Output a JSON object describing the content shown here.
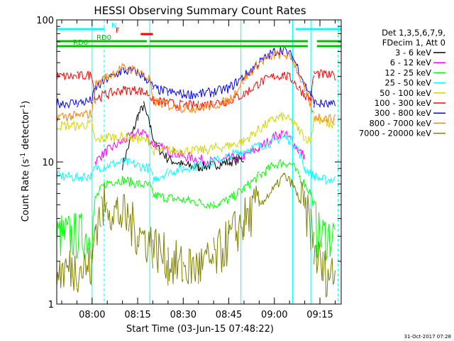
{
  "colors": {
    "series": [
      "#000000",
      "#ff00ff",
      "#00ff00",
      "#00ffff",
      "#d4d400",
      "#ff0000",
      "#0000ff",
      "#ff8000",
      "#808000"
    ],
    "attenuator": "#00c000",
    "night": "#00ffff",
    "flare": "#ff0000",
    "saa": "#00ffff"
  },
  "chart_data": {
    "type": "line",
    "title": "HESSI Observing Summary Count Rates",
    "xlabel": "Start Time (03-Jun-15 07:48:22)",
    "ylabel_main": "Count Rate (s",
    "ylabel_sup1": "-1",
    "ylabel_mid": " detector",
    "ylabel_sup2": "-1",
    "ylabel_end": ")",
    "y_scale": "log",
    "ylim": [
      1,
      100
    ],
    "xlim": [
      "07:48:22",
      "09:22:00"
    ],
    "x_ticks": [
      "08:00",
      "08:15",
      "08:30",
      "08:45",
      "09:00",
      "09:15"
    ],
    "y_tick_labels": [
      "1",
      "10",
      "100"
    ],
    "legend_header": [
      "Det 1,3,5,6,7,9,",
      "FDecim 1, Att 0"
    ],
    "grid": false,
    "legend_position": "right",
    "series": [
      {
        "name": "3 - 6 keV",
        "color_index": 0,
        "points": [
          [
            "07:48:22",
            null
          ],
          [
            "08:10",
            9.5
          ],
          [
            "08:13",
            15
          ],
          [
            "08:15",
            21
          ],
          [
            "08:17",
            25
          ],
          [
            "08:19",
            18
          ],
          [
            "08:21",
            13
          ],
          [
            "08:25",
            10.5
          ],
          [
            "08:30",
            9.5
          ],
          [
            "08:35",
            9.2
          ],
          [
            "08:40",
            9.5
          ],
          [
            "08:45",
            10
          ],
          [
            "08:50",
            10.5
          ],
          [
            "08:52",
            null
          ]
        ]
      },
      {
        "name": "6 - 12 keV",
        "color_index": 1,
        "points": [
          [
            "07:48:22",
            null
          ],
          [
            "08:01",
            10
          ],
          [
            "08:03",
            11
          ],
          [
            "08:05",
            12
          ],
          [
            "08:10",
            14
          ],
          [
            "08:15",
            16
          ],
          [
            "08:17",
            16.5
          ],
          [
            "08:19",
            14
          ],
          [
            "08:21",
            13
          ],
          [
            "08:25",
            12
          ],
          [
            "08:30",
            11
          ],
          [
            "08:35",
            10.5
          ],
          [
            "08:40",
            10
          ],
          [
            "08:45",
            10.5
          ],
          [
            "08:50",
            11
          ],
          [
            "08:55",
            12.5
          ],
          [
            "09:00",
            15
          ],
          [
            "09:03",
            16
          ],
          [
            "09:06",
            14
          ],
          [
            "09:08",
            12
          ],
          [
            "09:10",
            11
          ],
          [
            "09:12",
            null
          ]
        ]
      },
      {
        "name": "12 - 25 keV",
        "color_index": 2,
        "points": [
          [
            "07:48:22",
            3.0
          ],
          [
            "08:00",
            3.0
          ],
          [
            "08:01",
            5.5
          ],
          [
            "08:03",
            6.5
          ],
          [
            "08:05",
            7.2
          ],
          [
            "08:10",
            7.5
          ],
          [
            "08:15",
            7.0
          ],
          [
            "08:19",
            6.8
          ],
          [
            "08:20",
            5.8
          ],
          [
            "08:25",
            5.6
          ],
          [
            "08:30",
            5.4
          ],
          [
            "08:35",
            5.2
          ],
          [
            "08:40",
            5.0
          ],
          [
            "08:45",
            5.4
          ],
          [
            "08:50",
            6.5
          ],
          [
            "08:55",
            8.0
          ],
          [
            "09:00",
            9.5
          ],
          [
            "09:03",
            10
          ],
          [
            "09:06",
            9.5
          ],
          [
            "09:08",
            8.0
          ],
          [
            "09:10",
            7.0
          ],
          [
            "09:12",
            6.0
          ],
          [
            "09:13",
            5.0
          ],
          [
            "09:14",
            3.0
          ],
          [
            "09:20",
            3.0
          ]
        ]
      },
      {
        "name": "25 - 50 keV",
        "color_index": 3,
        "points": [
          [
            "07:48:22",
            8.0
          ],
          [
            "07:55",
            7.8
          ],
          [
            "08:00",
            8.0
          ],
          [
            "08:01",
            9.0
          ],
          [
            "08:05",
            9.5
          ],
          [
            "08:10",
            10
          ],
          [
            "08:15",
            9.5
          ],
          [
            "08:19",
            9.0
          ],
          [
            "08:20",
            7.5
          ],
          [
            "08:25",
            8.5
          ],
          [
            "08:30",
            9.0
          ],
          [
            "08:35",
            9.5
          ],
          [
            "08:40",
            10
          ],
          [
            "08:45",
            11
          ],
          [
            "08:50",
            12
          ],
          [
            "08:55",
            13
          ],
          [
            "09:00",
            14
          ],
          [
            "09:03",
            15
          ],
          [
            "09:06",
            14
          ],
          [
            "09:08",
            12
          ],
          [
            "09:10",
            9.0
          ],
          [
            "09:13",
            8.0
          ],
          [
            "09:16",
            7.5
          ],
          [
            "09:20",
            7.5
          ]
        ]
      },
      {
        "name": "50 - 100 keV",
        "color_index": 4,
        "points": [
          [
            "07:48:22",
            18
          ],
          [
            "07:55",
            18
          ],
          [
            "08:00",
            18.5
          ],
          [
            "08:01",
            14
          ],
          [
            "08:05",
            15
          ],
          [
            "08:10",
            15
          ],
          [
            "08:15",
            14.5
          ],
          [
            "08:19",
            14
          ],
          [
            "08:20",
            12
          ],
          [
            "08:25",
            12
          ],
          [
            "08:30",
            12
          ],
          [
            "08:35",
            12
          ],
          [
            "08:40",
            12.5
          ],
          [
            "08:45",
            13
          ],
          [
            "08:50",
            14
          ],
          [
            "08:55",
            17
          ],
          [
            "09:00",
            20
          ],
          [
            "09:03",
            21
          ],
          [
            "09:06",
            19
          ],
          [
            "09:08",
            17
          ],
          [
            "09:10",
            15
          ],
          [
            "09:12",
            14
          ],
          [
            "09:13",
            20
          ],
          [
            "09:20",
            18
          ]
        ]
      },
      {
        "name": "100 - 300 keV",
        "color_index": 5,
        "points": [
          [
            "07:48:22",
            40
          ],
          [
            "07:55",
            40
          ],
          [
            "08:00",
            41
          ],
          [
            "08:01",
            28
          ],
          [
            "08:05",
            30
          ],
          [
            "08:10",
            32
          ],
          [
            "08:15",
            32
          ],
          [
            "08:19",
            30
          ],
          [
            "08:20",
            27
          ],
          [
            "08:25",
            26
          ],
          [
            "08:30",
            25
          ],
          [
            "08:35",
            25
          ],
          [
            "08:40",
            26
          ],
          [
            "08:45",
            27
          ],
          [
            "08:50",
            30
          ],
          [
            "08:55",
            36
          ],
          [
            "09:00",
            40
          ],
          [
            "09:03",
            41
          ],
          [
            "09:06",
            38
          ],
          [
            "09:08",
            33
          ],
          [
            "09:10",
            30
          ],
          [
            "09:12",
            27
          ],
          [
            "09:13",
            42
          ],
          [
            "09:20",
            40
          ]
        ]
      },
      {
        "name": "300 - 800 keV",
        "color_index": 6,
        "points": [
          [
            "07:48:22",
            26
          ],
          [
            "07:55",
            26
          ],
          [
            "08:00",
            27
          ],
          [
            "08:01",
            33
          ],
          [
            "08:05",
            38
          ],
          [
            "08:10",
            44
          ],
          [
            "08:15",
            43
          ],
          [
            "08:19",
            37
          ],
          [
            "08:20",
            33
          ],
          [
            "08:25",
            31
          ],
          [
            "08:30",
            30
          ],
          [
            "08:35",
            30
          ],
          [
            "08:40",
            31
          ],
          [
            "08:45",
            33
          ],
          [
            "08:50",
            40
          ],
          [
            "08:55",
            50
          ],
          [
            "09:00",
            60
          ],
          [
            "09:03",
            62
          ],
          [
            "09:06",
            55
          ],
          [
            "09:08",
            45
          ],
          [
            "09:10",
            35
          ],
          [
            "09:12",
            30
          ],
          [
            "09:13",
            26
          ],
          [
            "09:20",
            25
          ]
        ]
      },
      {
        "name": "800 - 7000 keV",
        "color_index": 7,
        "points": [
          [
            "07:48:22",
            21
          ],
          [
            "07:55",
            21
          ],
          [
            "08:00",
            22
          ],
          [
            "08:01",
            35
          ],
          [
            "08:05",
            40
          ],
          [
            "08:10",
            46
          ],
          [
            "08:15",
            44
          ],
          [
            "08:19",
            38
          ],
          [
            "08:20",
            27
          ],
          [
            "08:25",
            25
          ],
          [
            "08:30",
            24
          ],
          [
            "08:35",
            24
          ],
          [
            "08:40",
            25
          ],
          [
            "08:45",
            27
          ],
          [
            "08:50",
            38
          ],
          [
            "08:55",
            50
          ],
          [
            "09:00",
            56
          ],
          [
            "09:03",
            58
          ],
          [
            "09:06",
            52
          ],
          [
            "09:08",
            42
          ],
          [
            "09:10",
            32
          ],
          [
            "09:12",
            25
          ],
          [
            "09:13",
            21
          ],
          [
            "09:20",
            20
          ]
        ]
      },
      {
        "name": "7000 - 20000 keV",
        "color_index": 8,
        "points": [
          [
            "07:48:22",
            1.7
          ],
          [
            "07:55",
            1.8
          ],
          [
            "08:00",
            1.8
          ],
          [
            "08:01",
            3.5
          ],
          [
            "08:03",
            4.5
          ],
          [
            "08:05",
            5.0
          ],
          [
            "08:08",
            4.5
          ],
          [
            "08:12",
            3.8
          ],
          [
            "08:15",
            3.2
          ],
          [
            "08:20",
            2.6
          ],
          [
            "08:25",
            2.0
          ],
          [
            "08:30",
            1.8
          ],
          [
            "08:35",
            1.8
          ],
          [
            "08:40",
            2.0
          ],
          [
            "08:45",
            2.8
          ],
          [
            "08:50",
            3.8
          ],
          [
            "08:55",
            5.0
          ],
          [
            "09:00",
            6.5
          ],
          [
            "09:03",
            8.0
          ],
          [
            "09:06",
            7.0
          ],
          [
            "09:08",
            5.5
          ],
          [
            "09:10",
            4.5
          ],
          [
            "09:12",
            3.5
          ],
          [
            "09:13",
            2.5
          ],
          [
            "09:16",
            1.7
          ],
          [
            "09:20",
            1.6
          ]
        ]
      }
    ],
    "flags": [
      {
        "label": "N",
        "color_index": "night",
        "segments": [
          [
            "07:48:22",
            "08:04"
          ],
          [
            "09:07",
            "09:22"
          ]
        ]
      },
      {
        "label": "F",
        "color_index": "flare",
        "segments": [
          [
            "08:16",
            "08:20"
          ]
        ]
      },
      {
        "label": "RD0",
        "color_index": "attenuator",
        "segments": [
          [
            "07:48:22",
            "08:18"
          ],
          [
            "08:19",
            "09:11"
          ],
          [
            "09:14",
            "09:22"
          ]
        ]
      },
      {
        "label": "RD6",
        "color_index": "attenuator",
        "segments": [
          [
            "07:48:22",
            "08:19"
          ],
          [
            "08:19",
            "09:11"
          ],
          [
            "09:14",
            "09:22"
          ]
        ]
      }
    ],
    "saa_solid": [
      "08:00",
      "08:19",
      "08:49",
      "09:06",
      "09:12"
    ],
    "saa_dashed": [
      "08:04",
      "09:21"
    ]
  },
  "stamp": "31-Oct-2017 07:28"
}
